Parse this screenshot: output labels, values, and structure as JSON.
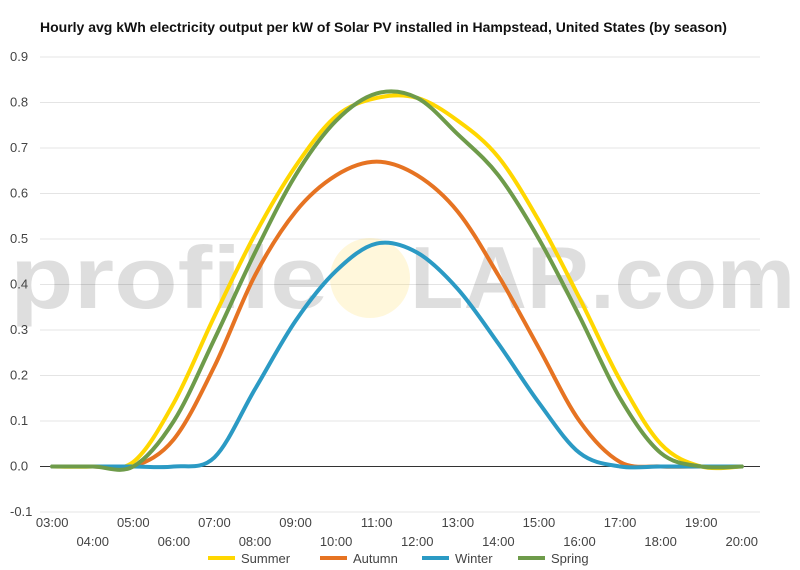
{
  "chart_data": {
    "type": "line",
    "title": "Hourly avg kWh electricity output per kW of Solar PV installed in Hampstead, United States (by season)",
    "watermark": {
      "left": "profile",
      "right": "LAR.com"
    },
    "ylim": [
      -0.1,
      0.9
    ],
    "yticks": [
      "-0.1",
      "0.0",
      "0.1",
      "0.2",
      "0.3",
      "0.4",
      "0.5",
      "0.6",
      "0.7",
      "0.8",
      "0.9"
    ],
    "ytick_values": [
      -0.1,
      0,
      0.1,
      0.2,
      0.3,
      0.4,
      0.5,
      0.6,
      0.7,
      0.8,
      0.9
    ],
    "xticks": [
      "03:00",
      "04:00",
      "05:00",
      "06:00",
      "07:00",
      "08:00",
      "09:00",
      "10:00",
      "11:00",
      "12:00",
      "13:00",
      "14:00",
      "15:00",
      "16:00",
      "17:00",
      "18:00",
      "19:00",
      "20:00"
    ],
    "x": [
      3,
      4,
      5,
      6,
      7,
      8,
      9,
      10,
      11,
      12,
      13,
      14,
      15,
      16,
      17,
      18,
      19,
      20
    ],
    "grid": true,
    "legend_position": "bottom",
    "series": [
      {
        "name": "Summer",
        "color": "#FFD700",
        "values": [
          0.0,
          0.0,
          0.01,
          0.14,
          0.33,
          0.51,
          0.66,
          0.77,
          0.81,
          0.81,
          0.76,
          0.68,
          0.54,
          0.37,
          0.19,
          0.05,
          0.0,
          0.0
        ]
      },
      {
        "name": "Autumn",
        "color": "#E67322",
        "values": [
          0.0,
          0.0,
          0.0,
          0.06,
          0.22,
          0.42,
          0.56,
          0.64,
          0.67,
          0.64,
          0.56,
          0.42,
          0.26,
          0.1,
          0.01,
          0.0,
          0.0,
          0.0
        ]
      },
      {
        "name": "Winter",
        "color": "#2B9AC4",
        "values": [
          0.0,
          0.0,
          0.0,
          0.0,
          0.02,
          0.17,
          0.32,
          0.43,
          0.49,
          0.47,
          0.39,
          0.27,
          0.14,
          0.03,
          0.0,
          0.0,
          0.0,
          0.0
        ]
      },
      {
        "name": "Spring",
        "color": "#6E9B4A",
        "values": [
          0.0,
          0.0,
          0.0,
          0.1,
          0.28,
          0.47,
          0.64,
          0.76,
          0.82,
          0.81,
          0.73,
          0.64,
          0.5,
          0.33,
          0.15,
          0.03,
          0.0,
          0.0
        ]
      }
    ]
  }
}
